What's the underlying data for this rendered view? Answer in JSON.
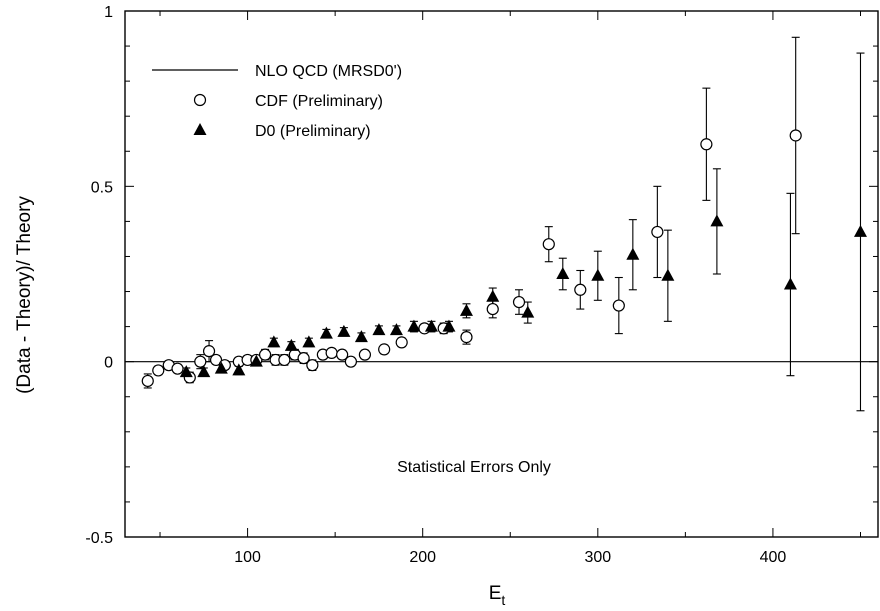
{
  "chart_data": {
    "type": "scatter",
    "title": "",
    "xlabel": "E",
    "xlabel_subscript": "t",
    "ylabel": "(Data - Theory)/ Theory",
    "xlim": [
      30,
      460
    ],
    "ylim": [
      -0.5,
      1.0
    ],
    "xticks": [
      100,
      200,
      300,
      400
    ],
    "xtick_labels": [
      "100",
      "200",
      "300",
      "400"
    ],
    "yticks": [
      -0.5,
      0,
      0.5,
      1.0
    ],
    "ytick_labels": [
      "-0.5",
      "0",
      "0.5",
      "1"
    ],
    "grid": false,
    "legend_position": "top-left",
    "annotation": "Statistical Errors Only",
    "reference_line": {
      "name": "NLO QCD (MRSD0')",
      "y": 0
    },
    "series": [
      {
        "name": "CDF (Preliminary)",
        "marker": "open-circle",
        "points": [
          {
            "x": 43,
            "y": -0.055,
            "err": 0.02
          },
          {
            "x": 49,
            "y": -0.025,
            "err": 0.012
          },
          {
            "x": 55,
            "y": -0.01,
            "err": 0.012
          },
          {
            "x": 60,
            "y": -0.02,
            "err": 0.012
          },
          {
            "x": 67,
            "y": -0.045,
            "err": 0.015
          },
          {
            "x": 73,
            "y": 0.0,
            "err": 0.02
          },
          {
            "x": 78,
            "y": 0.03,
            "err": 0.03
          },
          {
            "x": 82,
            "y": 0.005,
            "err": 0.012
          },
          {
            "x": 87,
            "y": -0.01,
            "err": 0.012
          },
          {
            "x": 95,
            "y": 0.0,
            "err": 0.012
          },
          {
            "x": 100,
            "y": 0.005,
            "err": 0.012
          },
          {
            "x": 105,
            "y": 0.005,
            "err": 0.012
          },
          {
            "x": 110,
            "y": 0.02,
            "err": 0.015
          },
          {
            "x": 116,
            "y": 0.005,
            "err": 0.015
          },
          {
            "x": 121,
            "y": 0.005,
            "err": 0.015
          },
          {
            "x": 127,
            "y": 0.02,
            "err": 0.015
          },
          {
            "x": 132,
            "y": 0.01,
            "err": 0.015
          },
          {
            "x": 137,
            "y": -0.01,
            "err": 0.015
          },
          {
            "x": 143,
            "y": 0.02,
            "err": 0.012
          },
          {
            "x": 148,
            "y": 0.025,
            "err": 0.012
          },
          {
            "x": 154,
            "y": 0.02,
            "err": 0.012
          },
          {
            "x": 159,
            "y": 0.0,
            "err": 0.012
          },
          {
            "x": 167,
            "y": 0.02,
            "err": 0.012
          },
          {
            "x": 178,
            "y": 0.035,
            "err": 0.012
          },
          {
            "x": 188,
            "y": 0.055,
            "err": 0.012
          },
          {
            "x": 201,
            "y": 0.095,
            "err": 0.012
          },
          {
            "x": 212,
            "y": 0.095,
            "err": 0.015
          },
          {
            "x": 225,
            "y": 0.07,
            "err": 0.02
          },
          {
            "x": 240,
            "y": 0.15,
            "err": 0.025
          },
          {
            "x": 255,
            "y": 0.17,
            "err": 0.035
          },
          {
            "x": 272,
            "y": 0.335,
            "err": 0.05
          },
          {
            "x": 290,
            "y": 0.205,
            "err": 0.055
          },
          {
            "x": 312,
            "y": 0.16,
            "err": 0.08
          },
          {
            "x": 334,
            "y": 0.37,
            "err": 0.13
          },
          {
            "x": 362,
            "y": 0.62,
            "err": 0.16
          },
          {
            "x": 413,
            "y": 0.645,
            "err": 0.28
          }
        ]
      },
      {
        "name": "D0 (Preliminary)",
        "marker": "filled-triangle",
        "points": [
          {
            "x": 65,
            "y": -0.03,
            "err": 0.012
          },
          {
            "x": 75,
            "y": -0.03,
            "err": 0.012
          },
          {
            "x": 85,
            "y": -0.02,
            "err": 0.012
          },
          {
            "x": 95,
            "y": -0.025,
            "err": 0.012
          },
          {
            "x": 105,
            "y": 0.0,
            "err": 0.012
          },
          {
            "x": 115,
            "y": 0.055,
            "err": 0.012
          },
          {
            "x": 125,
            "y": 0.045,
            "err": 0.012
          },
          {
            "x": 135,
            "y": 0.055,
            "err": 0.012
          },
          {
            "x": 145,
            "y": 0.08,
            "err": 0.012
          },
          {
            "x": 155,
            "y": 0.085,
            "err": 0.012
          },
          {
            "x": 165,
            "y": 0.07,
            "err": 0.012
          },
          {
            "x": 175,
            "y": 0.09,
            "err": 0.012
          },
          {
            "x": 185,
            "y": 0.09,
            "err": 0.012
          },
          {
            "x": 195,
            "y": 0.1,
            "err": 0.015
          },
          {
            "x": 205,
            "y": 0.1,
            "err": 0.015
          },
          {
            "x": 215,
            "y": 0.1,
            "err": 0.015
          },
          {
            "x": 225,
            "y": 0.145,
            "err": 0.02
          },
          {
            "x": 240,
            "y": 0.185,
            "err": 0.025
          },
          {
            "x": 260,
            "y": 0.14,
            "err": 0.03
          },
          {
            "x": 280,
            "y": 0.25,
            "err": 0.045
          },
          {
            "x": 300,
            "y": 0.245,
            "err": 0.07
          },
          {
            "x": 320,
            "y": 0.305,
            "err": 0.1
          },
          {
            "x": 340,
            "y": 0.245,
            "err": 0.13
          },
          {
            "x": 368,
            "y": 0.4,
            "err": 0.15
          },
          {
            "x": 410,
            "y": 0.22,
            "err": 0.26
          },
          {
            "x": 450,
            "y": 0.37,
            "err": 0.51
          }
        ]
      }
    ]
  }
}
